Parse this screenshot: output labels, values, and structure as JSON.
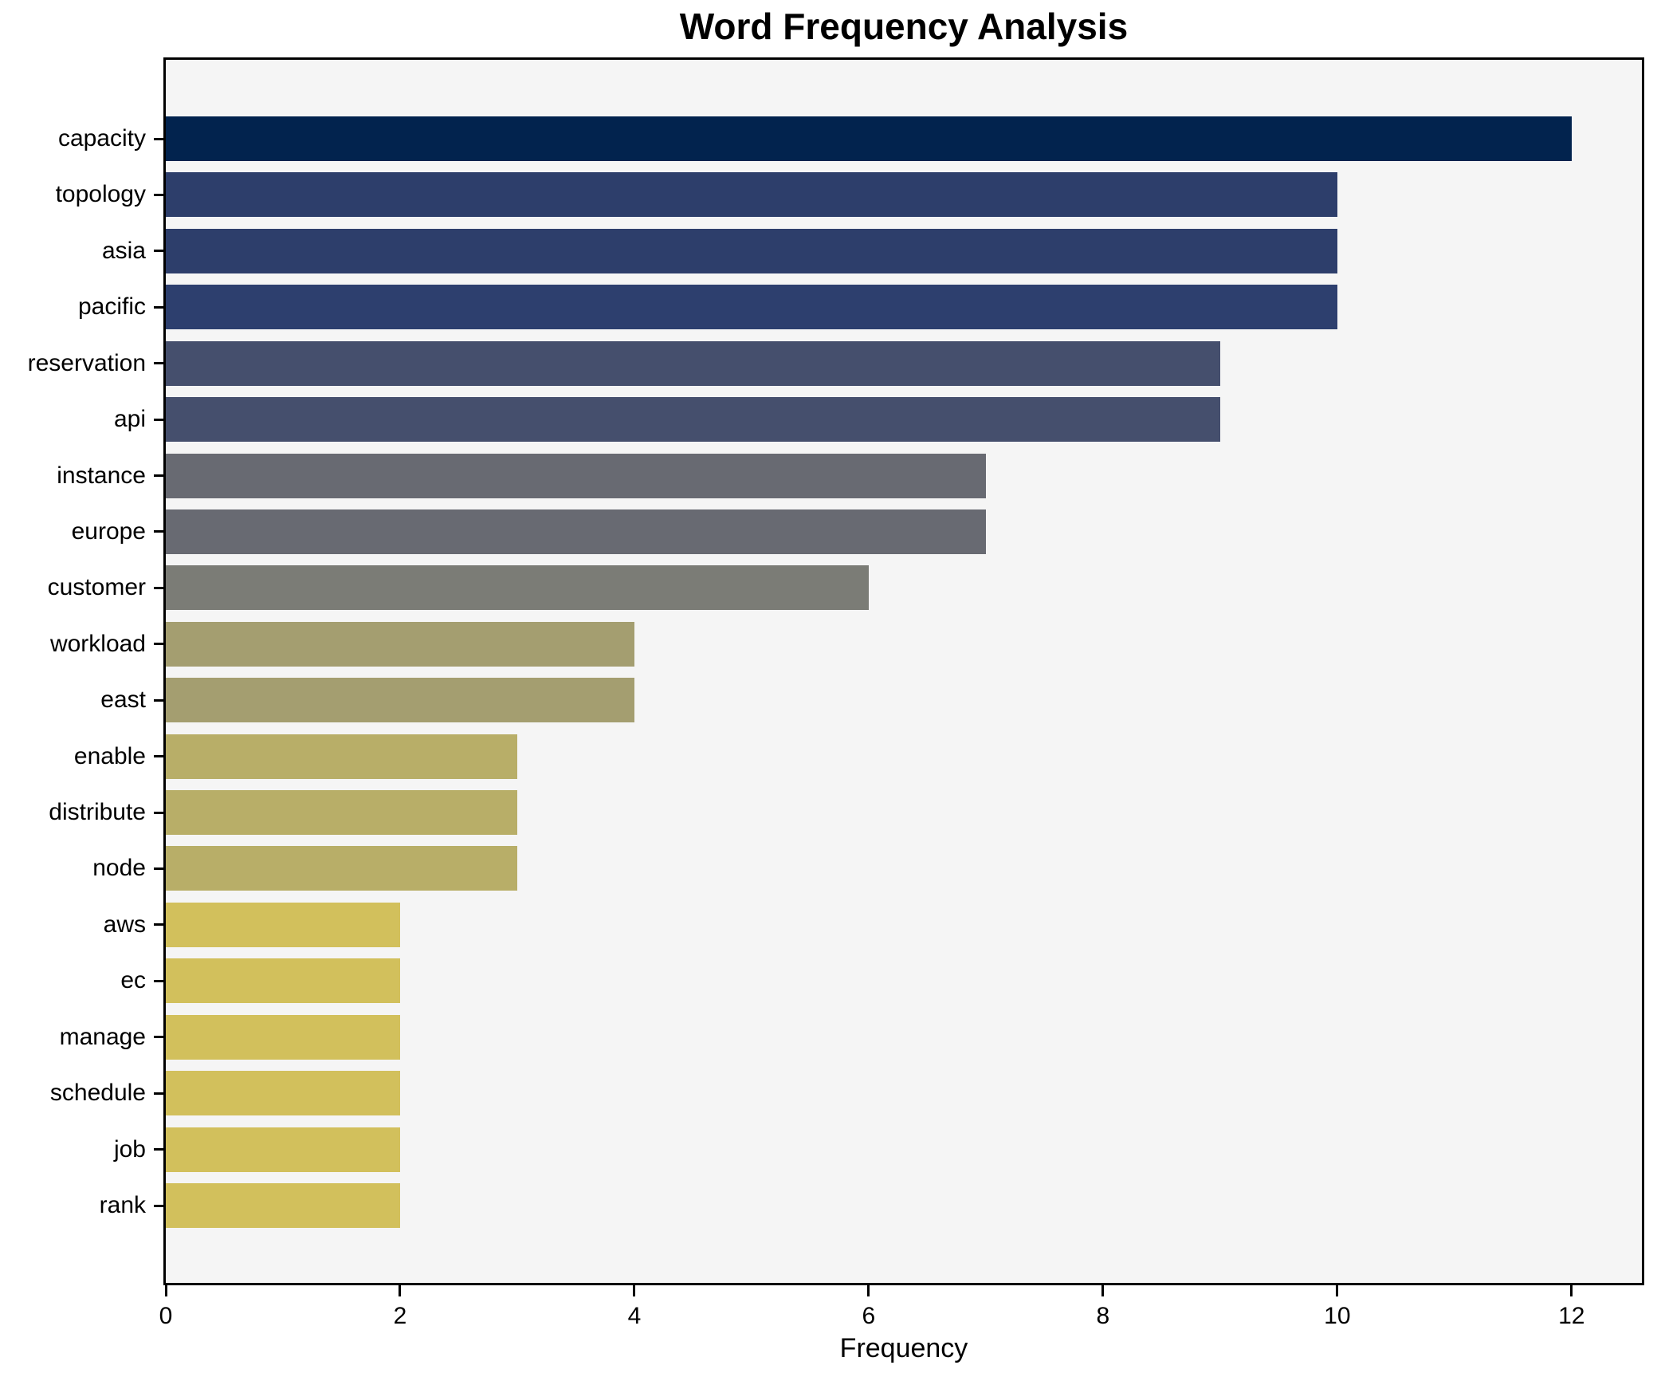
{
  "title": "Word Frequency Analysis",
  "chart_data": {
    "type": "bar",
    "orientation": "horizontal",
    "title": "Word Frequency Analysis",
    "xlabel": "Frequency",
    "ylabel": "",
    "categories": [
      "capacity",
      "topology",
      "asia",
      "pacific",
      "reservation",
      "api",
      "instance",
      "europe",
      "customer",
      "workload",
      "east",
      "enable",
      "distribute",
      "node",
      "aws",
      "ec",
      "manage",
      "schedule",
      "job",
      "rank"
    ],
    "values": [
      12,
      10,
      10,
      10,
      9,
      9,
      7,
      7,
      6,
      4,
      4,
      3,
      3,
      3,
      2,
      2,
      2,
      2,
      2,
      2
    ],
    "bar_colors": [
      "#02234e",
      "#2d3e6b",
      "#2d3e6b",
      "#2d3f6e",
      "#454f6d",
      "#454f6d",
      "#686a72",
      "#686a72",
      "#7b7c76",
      "#a49e70",
      "#a49e70",
      "#b8ae68",
      "#b8ae68",
      "#b8ae68",
      "#d2c05c",
      "#d2c05c",
      "#d2c05c",
      "#d2c05c",
      "#d2c05c",
      "#d2c05c"
    ],
    "xticks": [
      0,
      2,
      4,
      6,
      8,
      10,
      12
    ],
    "xlim": [
      0,
      12.6
    ],
    "grid": false,
    "legend": null,
    "colormap": "cividis (reversed by value: high=dark navy, low=yellow)",
    "plot_bg": "#f5f5f5",
    "fig_bg": "#ffffff",
    "spine_color": "#000000"
  }
}
